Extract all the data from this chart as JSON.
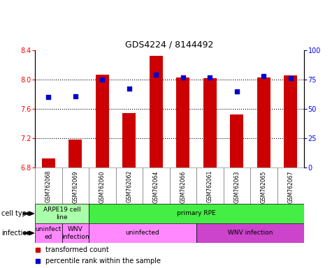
{
  "title": "GDS4224 / 8144492",
  "samples": [
    "GSM762068",
    "GSM762069",
    "GSM762060",
    "GSM762062",
    "GSM762064",
    "GSM762066",
    "GSM762061",
    "GSM762063",
    "GSM762065",
    "GSM762067"
  ],
  "transformed_count": [
    6.92,
    7.18,
    8.07,
    7.54,
    8.32,
    8.03,
    8.02,
    7.52,
    8.03,
    8.06
  ],
  "percentile_rank": [
    60,
    61,
    75,
    67,
    79,
    77,
    77,
    65,
    78,
    76
  ],
  "ylim_left": [
    6.8,
    8.4
  ],
  "ylim_right": [
    0,
    100
  ],
  "yticks_left": [
    6.8,
    7.2,
    7.6,
    8.0,
    8.4
  ],
  "yticks_right": [
    0,
    25,
    50,
    75,
    100
  ],
  "bar_color": "#cc0000",
  "dot_color": "#0000cc",
  "bar_bottom": 6.8,
  "cell_type_regions": [
    {
      "label": "ARPE19 cell\nline",
      "start": 0,
      "end": 2,
      "color": "#aaffaa"
    },
    {
      "label": "primary RPE",
      "start": 2,
      "end": 10,
      "color": "#44ee44"
    }
  ],
  "infection_regions": [
    {
      "label": "uninfect\ned",
      "start": 0,
      "end": 1,
      "color": "#ff88ff"
    },
    {
      "label": "WNV\ninfection",
      "start": 1,
      "end": 2,
      "color": "#ff88ff"
    },
    {
      "label": "uninfected",
      "start": 2,
      "end": 6,
      "color": "#ff88ff"
    },
    {
      "label": "WNV infection",
      "start": 6,
      "end": 10,
      "color": "#cc44cc"
    }
  ],
  "tick_bg_color": "#cccccc",
  "tick_border_color": "#888888",
  "legend_red_label": "transformed count",
  "legend_blue_label": "percentile rank within the sample",
  "label_cell_type": "cell type",
  "label_infection": "infection"
}
